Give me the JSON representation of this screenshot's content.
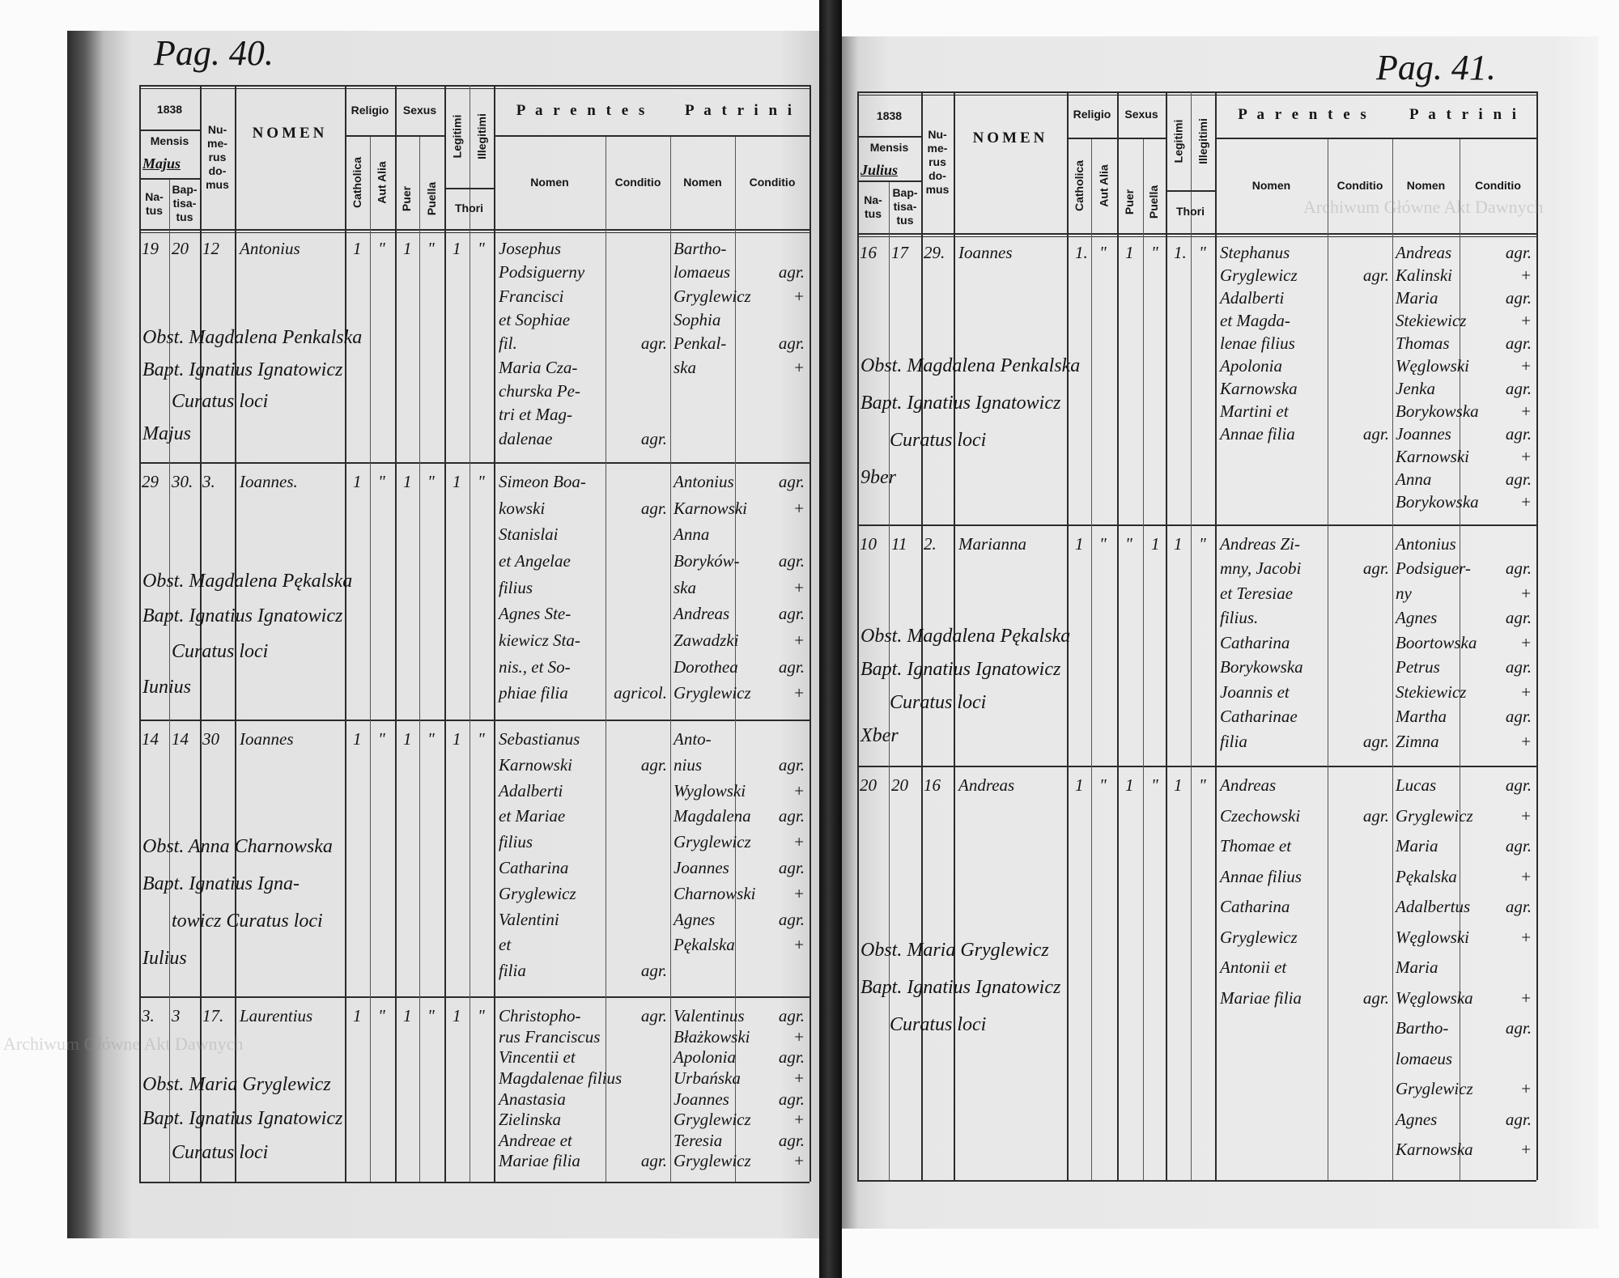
{
  "header": {
    "year": "1838",
    "mensis": "Mensis",
    "natus": "Na-\ntus",
    "baptisatus": "Bap-\ntisa-\ntus",
    "numerus": "Nu-\nme-\nrus\ndo-\nmus",
    "nomen": "NOMEN",
    "religio": "Religio",
    "catholica": "Catholica",
    "aut_alia": "Aut Alia",
    "sexus": "Sexus",
    "puer": "Puer",
    "puella": "Puella",
    "legitimi": "Legitimi",
    "illegitimi": "Illegitimi",
    "thori": "Thori",
    "parentes": "P a r e n t e s",
    "patrini": "P a t r i n i",
    "parentes_nomen": "Nomen",
    "parentes_conditio": "Conditio",
    "patrini_nomen": "Nomen",
    "patrini_conditio": "Conditio"
  },
  "watermark": "Archiwum Główne Akt Dawnych",
  "pages": [
    {
      "page_number": "Pag. 40.",
      "month": "Majus",
      "entries": [
        {
          "natus": "19",
          "baptisatus": "20",
          "numerus": "12",
          "nomen": "Antonius",
          "marks": [
            "1",
            "\"",
            "1",
            "\"",
            "1",
            "\""
          ],
          "parentes": [
            [
              "Josephus",
              ""
            ],
            [
              "Podsiguerny",
              ""
            ],
            [
              "Francisci",
              ""
            ],
            [
              "et Sophiae",
              ""
            ],
            [
              "fil.",
              "agr."
            ],
            [
              "Maria Cza-",
              ""
            ],
            [
              "churska Pe-",
              ""
            ],
            [
              "tri et Mag-",
              ""
            ],
            [
              "dalenae",
              "agr."
            ]
          ],
          "patrini": [
            [
              "Bartho-",
              ""
            ],
            [
              "lomaeus",
              "agr."
            ],
            [
              "Gryglewicz",
              "+"
            ],
            [
              "Sophia",
              ""
            ],
            [
              "Penkal-",
              "agr."
            ],
            [
              "ska",
              "+"
            ]
          ],
          "notes": [
            "Obst. Magdalena Penkalska",
            "Bapt. Ignatius Ignatowicz",
            "Curatus loci",
            "Majus"
          ]
        },
        {
          "natus": "29",
          "baptisatus": "30.",
          "numerus": "3.",
          "nomen": "Ioannes.",
          "marks": [
            "1",
            "\"",
            "1",
            "\"",
            "1",
            "\""
          ],
          "parentes": [
            [
              "Simeon Boa-",
              ""
            ],
            [
              "kowski",
              "agr."
            ],
            [
              "Stanislai",
              ""
            ],
            [
              "et Angelae",
              ""
            ],
            [
              "filius",
              ""
            ],
            [
              "Agnes Ste-",
              ""
            ],
            [
              "kiewicz Sta-",
              ""
            ],
            [
              "nis., et So-",
              ""
            ],
            [
              "phiae filia",
              "agricol."
            ]
          ],
          "patrini": [
            [
              "Antonius",
              "agr."
            ],
            [
              "Karnowski",
              "+"
            ],
            [
              "Anna",
              ""
            ],
            [
              "Boryków-",
              "agr."
            ],
            [
              "ska",
              "+"
            ],
            [
              "Andreas",
              "agr."
            ],
            [
              "Zawadzki",
              "+"
            ],
            [
              "Dorothea",
              "agr."
            ],
            [
              "Gryglewicz",
              "+"
            ]
          ],
          "notes": [
            "Obst. Magdalena Pękalska",
            "Bapt. Ignatius Ignatowicz",
            "Curatus loci",
            "Iunius"
          ]
        },
        {
          "natus": "14",
          "baptisatus": "14",
          "numerus": "30",
          "nomen": "Ioannes",
          "marks": [
            "1",
            "\"",
            "1",
            "\"",
            "1",
            "\""
          ],
          "parentes": [
            [
              "Sebastianus",
              ""
            ],
            [
              "Karnowski",
              "agr."
            ],
            [
              "Adalberti",
              ""
            ],
            [
              "et Mariae",
              ""
            ],
            [
              "filius",
              ""
            ],
            [
              "Catharina",
              ""
            ],
            [
              "Gryglewicz",
              ""
            ],
            [
              "Valentini",
              ""
            ],
            [
              "et",
              ""
            ],
            [
              "filia",
              "agr."
            ]
          ],
          "patrini": [
            [
              "Anto-",
              ""
            ],
            [
              "nius",
              "agr."
            ],
            [
              "Wyglowski",
              "+"
            ],
            [
              "Magdalena",
              "agr."
            ],
            [
              "Gryglewicz",
              "+"
            ],
            [
              "Joannes",
              "agr."
            ],
            [
              "Charnowski",
              "+"
            ],
            [
              "Agnes",
              "agr."
            ],
            [
              "Pękalska",
              "+"
            ]
          ],
          "notes": [
            "Obst. Anna Charnowska",
            "Bapt. Ignatius Igna-",
            "towicz Curatus loci",
            "Iulius"
          ]
        },
        {
          "natus": "3.",
          "baptisatus": "3",
          "numerus": "17.",
          "nomen": "Laurentius",
          "marks": [
            "1",
            "\"",
            "1",
            "\"",
            "1",
            "\""
          ],
          "parentes": [
            [
              "Christopho-",
              "agr."
            ],
            [
              "rus Franciscus",
              ""
            ],
            [
              "Vincentii et",
              ""
            ],
            [
              "Magdalenae filius",
              ""
            ],
            [
              "Anastasia",
              ""
            ],
            [
              "Zielinska",
              ""
            ],
            [
              "Andreae et",
              ""
            ],
            [
              "Mariae filia",
              "agr."
            ]
          ],
          "patrini": [
            [
              "Valentinus",
              "agr."
            ],
            [
              "Błażkowski",
              "+"
            ],
            [
              "Apolonia",
              "agr."
            ],
            [
              "Urbańska",
              "+"
            ],
            [
              "Joannes",
              "agr."
            ],
            [
              "Gryglewicz",
              "+"
            ],
            [
              "Teresia",
              "agr."
            ],
            [
              "Gryglewicz",
              "+"
            ]
          ],
          "notes": [
            "Obst. Maria Gryglewicz",
            "Bapt. Ignatius Ignatowicz",
            "Curatus loci"
          ]
        }
      ]
    },
    {
      "page_number": "Pag. 41.",
      "month": "Julius",
      "entries": [
        {
          "natus": "16",
          "baptisatus": "17",
          "numerus": "29.",
          "nomen": "Ioannes",
          "marks": [
            "1.",
            "\"",
            "1",
            "\"",
            "1.",
            "\""
          ],
          "parentes": [
            [
              "Stephanus",
              ""
            ],
            [
              "Gryglewicz",
              "agr."
            ],
            [
              "Adalberti",
              ""
            ],
            [
              "et Magda-",
              ""
            ],
            [
              "lenae filius",
              ""
            ],
            [
              "Apolonia",
              ""
            ],
            [
              "Karnowska",
              ""
            ],
            [
              "Martini et",
              ""
            ],
            [
              "Annae filia",
              "agr."
            ]
          ],
          "patrini": [
            [
              "Andreas",
              "agr."
            ],
            [
              "Kalinski",
              "+"
            ],
            [
              "Maria",
              "agr."
            ],
            [
              "Stekiewicz",
              "+"
            ],
            [
              "Thomas",
              "agr."
            ],
            [
              "Węglowski",
              "+"
            ],
            [
              "Jenka",
              "agr."
            ],
            [
              "Borykowska",
              "+"
            ],
            [
              "Joannes",
              "agr."
            ],
            [
              "Karnowski",
              "+"
            ],
            [
              "Anna",
              "agr."
            ],
            [
              "Borykowska",
              "+"
            ]
          ],
          "notes": [
            "Obst. Magdalena Penkalska",
            "Bapt. Ignatius Ignatowicz",
            "Curatus loci",
            "9ber"
          ]
        },
        {
          "natus": "10",
          "baptisatus": "11",
          "numerus": "2.",
          "nomen": "Marianna",
          "marks": [
            "1",
            "\"",
            "\"",
            "1",
            "1",
            "\""
          ],
          "parentes": [
            [
              "Andreas Zi-",
              ""
            ],
            [
              "mny, Jacobi",
              "agr."
            ],
            [
              "et Teresiae",
              ""
            ],
            [
              "filius.",
              ""
            ],
            [
              "Catharina",
              ""
            ],
            [
              "Borykowska",
              ""
            ],
            [
              "Joannis et",
              ""
            ],
            [
              "Catharinae",
              ""
            ],
            [
              "filia",
              "agr."
            ]
          ],
          "patrini": [
            [
              "Antonius",
              ""
            ],
            [
              "Podsiguer-",
              "agr."
            ],
            [
              "ny",
              "+"
            ],
            [
              "Agnes",
              "agr."
            ],
            [
              "Boortowska",
              "+"
            ],
            [
              "Petrus",
              "agr."
            ],
            [
              "Stekiewicz",
              "+"
            ],
            [
              "Martha",
              "agr."
            ],
            [
              "Zimna",
              "+"
            ]
          ],
          "notes": [
            "Obst. Magdalena Pękalska",
            "Bapt. Ignatius Ignatowicz",
            "Curatus loci",
            "Xber"
          ]
        },
        {
          "natus": "20",
          "baptisatus": "20",
          "numerus": "16",
          "nomen": "Andreas",
          "marks": [
            "1",
            "\"",
            "1",
            "\"",
            "1",
            "\""
          ],
          "parentes": [
            [
              "Andreas",
              ""
            ],
            [
              "Czechowski",
              "agr."
            ],
            [
              "Thomae et",
              ""
            ],
            [
              "Annae filius",
              ""
            ],
            [
              "Catharina",
              ""
            ],
            [
              "Gryglewicz",
              ""
            ],
            [
              "Antonii et",
              ""
            ],
            [
              "Mariae filia",
              "agr."
            ]
          ],
          "patrini": [
            [
              "Lucas",
              "agr."
            ],
            [
              "Gryglewicz",
              "+"
            ],
            [
              "Maria",
              "agr."
            ],
            [
              "Pękalska",
              "+"
            ],
            [
              "Adalbertus",
              "agr."
            ],
            [
              "Węglowski",
              "+"
            ],
            [
              "Maria",
              ""
            ],
            [
              "Węglowska",
              "+"
            ],
            [
              "Bartho-",
              "agr."
            ],
            [
              "lomaeus",
              ""
            ],
            [
              "Gryglewicz",
              "+"
            ],
            [
              "Agnes",
              "agr."
            ],
            [
              "Karnowska",
              "+"
            ]
          ],
          "notes": [
            "Obst. Maria Gryglewicz",
            "Bapt. Ignatius Ignatowicz",
            "Curatus loci"
          ]
        }
      ]
    }
  ]
}
